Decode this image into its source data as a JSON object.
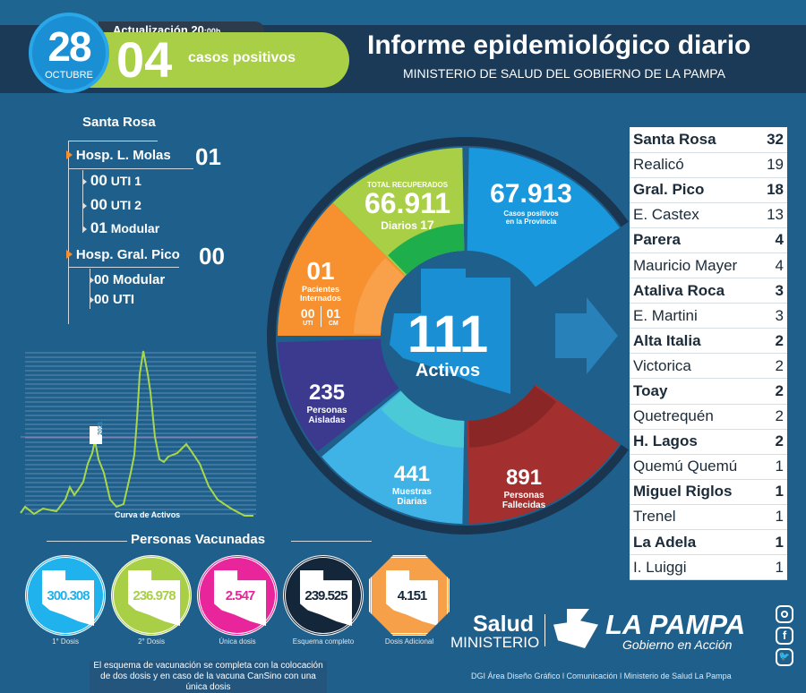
{
  "header": {
    "day": "28",
    "month": "OCTUBRE",
    "update_label": "Actualización 20",
    "update_small": ":00h",
    "new_cases": "04",
    "new_cases_label": "casos positivos",
    "title": "Informe epidemiológico diario",
    "subtitle": "MINISTERIO DE SALUD DEL GOBIERNO DE LA PAMPA"
  },
  "hospitals": {
    "city": "Santa Rosa",
    "h1": {
      "name": "Hosp. L. Molas",
      "total": "01",
      "items": [
        {
          "n": "00",
          "l": "UTI 1"
        },
        {
          "n": "00",
          "l": "UTI 2"
        },
        {
          "n": "01",
          "l": "Modular"
        }
      ]
    },
    "h2": {
      "name": "Hosp. Gral. Pico",
      "total": "00",
      "items": [
        {
          "n": "00",
          "l": "Modular"
        },
        {
          "n": "00",
          "l": "UTI"
        }
      ]
    }
  },
  "chart": {
    "title": "Curva de Activos",
    "tag": "2021"
  },
  "wheel": {
    "recovered": {
      "label": "TOTAL RECUPERADOS",
      "value": "66.911",
      "daily_label": "Diarios",
      "daily": "17"
    },
    "positives": {
      "value": "67.913",
      "label1": "Casos positivos",
      "label2": "en la Provincia"
    },
    "hospitalized": {
      "value": "01",
      "label1": "Pacientes",
      "label2": "Internados",
      "uti": "00",
      "uti_label": "UTI",
      "cm": "01",
      "cm_label": "CM"
    },
    "isolated": {
      "value": "235",
      "label1": "Personas",
      "label2": "Aisladas"
    },
    "samples": {
      "value": "441",
      "label1": "Muestras",
      "label2": "Diarias"
    },
    "deaths": {
      "value": "891",
      "label1": "Personas",
      "label2": "Fallecidas"
    },
    "active": {
      "value": "111",
      "label": "Activos"
    }
  },
  "localities": [
    {
      "name": "Santa Rosa",
      "value": "32",
      "bold": true
    },
    {
      "name": "Realicó",
      "value": "19"
    },
    {
      "name": "Gral. Pico",
      "value": "18",
      "bold": true
    },
    {
      "name": "E. Castex",
      "value": "13"
    },
    {
      "name": "Parera",
      "value": "4",
      "bold": true
    },
    {
      "name": "Mauricio Mayer",
      "value": "4"
    },
    {
      "name": "Ataliva Roca",
      "value": "3",
      "bold": true
    },
    {
      "name": "E. Martini",
      "value": "3"
    },
    {
      "name": "Alta Italia",
      "value": "2",
      "bold": true
    },
    {
      "name": "Victorica",
      "value": "2"
    },
    {
      "name": "Toay",
      "value": "2",
      "bold": true
    },
    {
      "name": "Quetrequén",
      "value": "2"
    },
    {
      "name": "H. Lagos",
      "value": "2",
      "bold": true
    },
    {
      "name": "Quemú Quemú",
      "value": "1"
    },
    {
      "name": "Miguel Riglos",
      "value": "1",
      "bold": true
    },
    {
      "name": "Trenel",
      "value": "1"
    },
    {
      "name": "La Adela",
      "value": "1",
      "bold": true
    },
    {
      "name": "I. Luiggi",
      "value": "1"
    }
  ],
  "vaccines": {
    "title": "Personas Vacunadas",
    "items": [
      {
        "value": "300.308",
        "label": "1° Dosis",
        "color": "#1fb2ec",
        "text": "#1fb2ec"
      },
      {
        "value": "236.978",
        "label": "2° Dosis",
        "color": "#a8cf45",
        "text": "#a8cf45"
      },
      {
        "value": "2.547",
        "label": "Única dosis",
        "color": "#e8259a",
        "text": "#e8259a"
      },
      {
        "value": "239.525",
        "label": "Esquema completo",
        "color": "#14263a",
        "text": "#14263a"
      },
      {
        "value": "4.151",
        "label": "Dosis Adicional",
        "color": "#f7a04a",
        "text": "#14263a"
      }
    ],
    "note": "El esquema de vacunación se completa con la colocación de dos dosis y en caso de la vacuna CanSino con una única dosis"
  },
  "footer": {
    "salud": "Salud",
    "ministerio": "MINISTERIO",
    "brand": "LA PAMPA",
    "slogan": "Gobierno en Acción",
    "credits": "DGI Área Diseño Gráfico  l Comunicación l Ministerio de Salud La Pampa"
  }
}
